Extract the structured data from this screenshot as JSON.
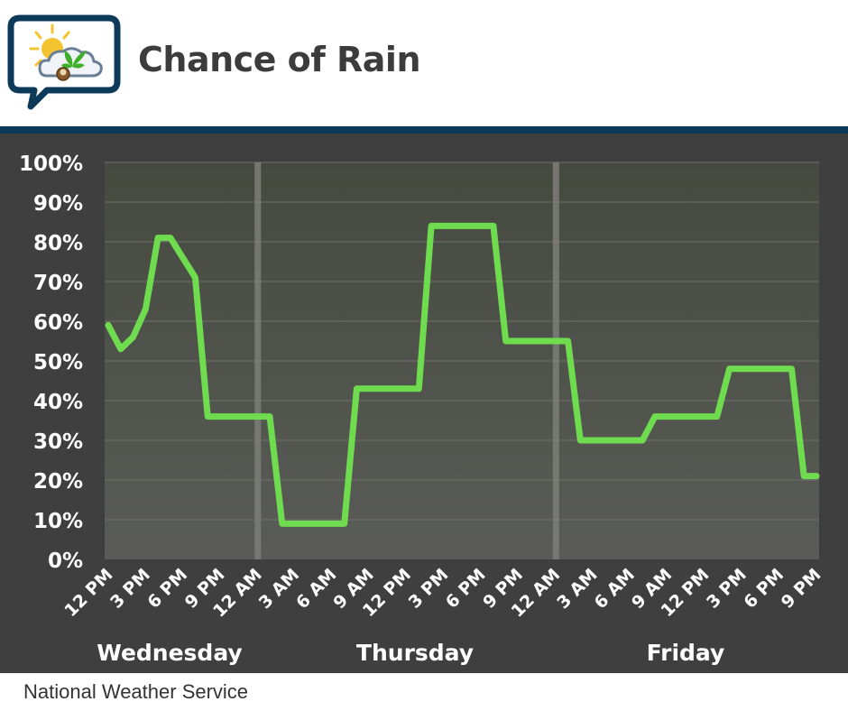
{
  "header": {
    "title": "Chance of Rain",
    "logo_icon": "sun-cloud-leaf-speech-bubble-icon"
  },
  "footer": {
    "source": "National Weather Service"
  },
  "colors": {
    "line": "#6fdc4f",
    "panel": "#3f3f3f",
    "rule": "#0e3a5a",
    "title": "#3c3c3c"
  },
  "chart_data": {
    "type": "line",
    "title": "Chance of Rain",
    "xlabel": "",
    "ylabel": "",
    "ylim": [
      0,
      100
    ],
    "yticks": [
      "0%",
      "10%",
      "20%",
      "30%",
      "40%",
      "50%",
      "60%",
      "70%",
      "80%",
      "90%",
      "100%"
    ],
    "x_tick_labels": [
      "12 PM",
      "3 PM",
      "6 PM",
      "9 PM",
      "12 AM",
      "3 AM",
      "6 AM",
      "9 AM",
      "12 PM",
      "3 PM",
      "6 PM",
      "9 PM",
      "12 AM",
      "3 AM",
      "6 AM",
      "9 AM",
      "12 PM",
      "3 PM",
      "6 PM",
      "9 PM"
    ],
    "day_labels": [
      "Wednesday",
      "Thursday",
      "Friday"
    ],
    "x_unit": "hours after Wednesday 12 PM",
    "day_separators_hours": [
      12,
      36
    ],
    "grid": true,
    "series": [
      {
        "name": "",
        "points": [
          [
            0,
            59
          ],
          [
            1,
            53
          ],
          [
            2,
            56
          ],
          [
            3,
            63
          ],
          [
            4,
            81
          ],
          [
            5,
            81
          ],
          [
            6,
            76
          ],
          [
            7,
            71
          ],
          [
            8,
            36
          ],
          [
            9,
            36
          ],
          [
            10,
            36
          ],
          [
            11,
            36
          ],
          [
            12,
            36
          ],
          [
            13,
            36
          ],
          [
            14,
            9
          ],
          [
            15,
            9
          ],
          [
            16,
            9
          ],
          [
            17,
            9
          ],
          [
            18,
            9
          ],
          [
            19,
            9
          ],
          [
            20,
            43
          ],
          [
            21,
            43
          ],
          [
            22,
            43
          ],
          [
            23,
            43
          ],
          [
            24,
            43
          ],
          [
            25,
            43
          ],
          [
            26,
            84
          ],
          [
            27,
            84
          ],
          [
            28,
            84
          ],
          [
            29,
            84
          ],
          [
            30,
            84
          ],
          [
            31,
            84
          ],
          [
            32,
            55
          ],
          [
            33,
            55
          ],
          [
            34,
            55
          ],
          [
            35,
            55
          ],
          [
            36,
            55
          ],
          [
            37,
            55
          ],
          [
            38,
            30
          ],
          [
            39,
            30
          ],
          [
            40,
            30
          ],
          [
            41,
            30
          ],
          [
            42,
            30
          ],
          [
            43,
            30
          ],
          [
            44,
            36
          ],
          [
            45,
            36
          ],
          [
            46,
            36
          ],
          [
            47,
            36
          ],
          [
            48,
            36
          ],
          [
            49,
            36
          ],
          [
            50,
            48
          ],
          [
            51,
            48
          ],
          [
            52,
            48
          ],
          [
            53,
            48
          ],
          [
            54,
            48
          ],
          [
            55,
            48
          ],
          [
            56,
            21
          ],
          [
            57,
            21
          ]
        ]
      }
    ]
  }
}
